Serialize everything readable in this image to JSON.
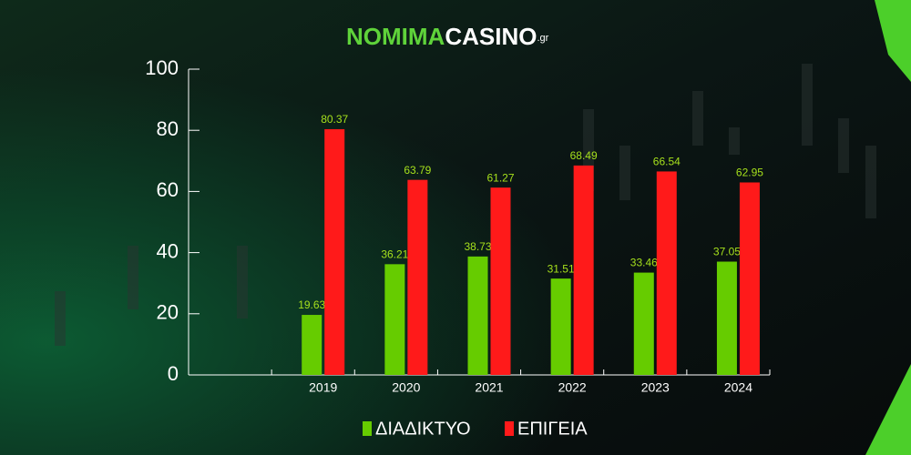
{
  "logo": {
    "part1": "NOMIMA",
    "part2": "CASINO",
    "suffix": ".gr"
  },
  "chart_data": {
    "type": "bar",
    "categories": [
      null,
      "2019",
      "2020",
      "2021",
      "2022",
      "2023",
      "2024"
    ],
    "series": [
      {
        "name": "ΔΙΑΔΙΚΤΥΟ",
        "color": "#66cc00",
        "values": [
          null,
          19.63,
          36.21,
          38.73,
          31.51,
          33.46,
          37.05
        ]
      },
      {
        "name": "ΕΠΙΓΕΙΑ",
        "color": "#ff1a1a",
        "values": [
          null,
          80.37,
          63.79,
          61.27,
          68.49,
          66.54,
          62.95
        ]
      }
    ],
    "ylim": [
      0,
      100
    ],
    "yticks": [
      0,
      20,
      40,
      60,
      80,
      100
    ],
    "grid": false,
    "legend": "bottom"
  }
}
